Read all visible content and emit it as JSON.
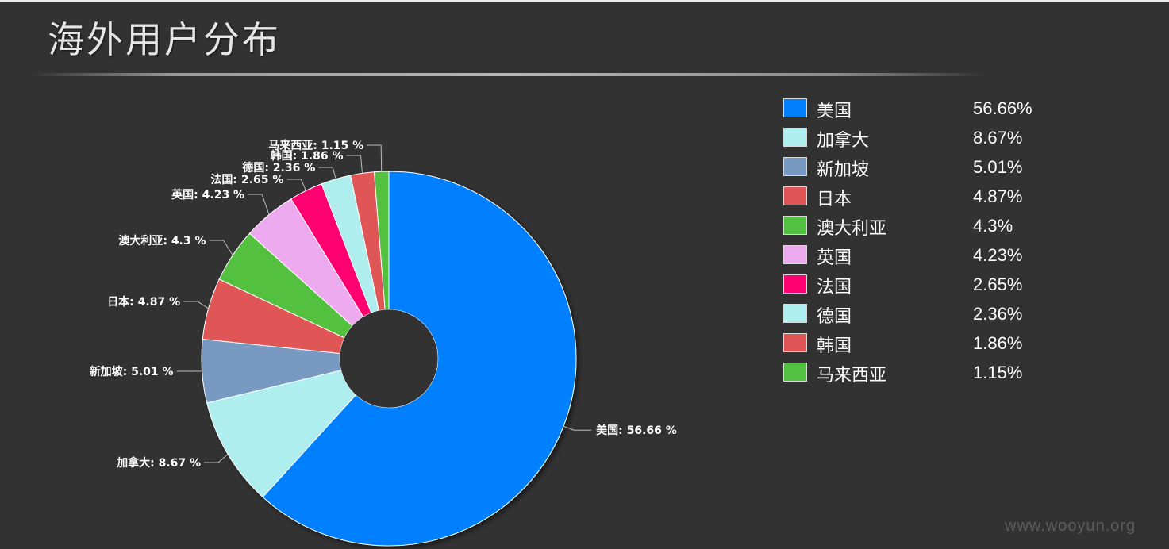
{
  "page": {
    "title": "海外用户分布"
  },
  "watermark": "www.wooyun.org",
  "chart_data": {
    "type": "pie",
    "donut": true,
    "title": "",
    "label_separator": ": ",
    "label_suffix": " %",
    "legend_position": "right",
    "slices": [
      {
        "name": "美国",
        "value": 56.66,
        "display": "56.66%",
        "color": "#0080ff"
      },
      {
        "name": "加拿大",
        "value": 8.67,
        "display": "8.67%",
        "color": "#aeeeee"
      },
      {
        "name": "新加坡",
        "value": 5.01,
        "display": "5.01%",
        "color": "#7899c2"
      },
      {
        "name": "日本",
        "value": 4.87,
        "display": "4.87%",
        "color": "#e05555"
      },
      {
        "name": "澳大利亚",
        "value": 4.3,
        "display": "4.3%",
        "color": "#52c040"
      },
      {
        "name": "英国",
        "value": 4.23,
        "display": "4.23%",
        "color": "#eeaaee"
      },
      {
        "name": "法国",
        "value": 2.65,
        "display": "2.65%",
        "color": "#ff0070"
      },
      {
        "name": "德国",
        "value": 2.36,
        "display": "2.36%",
        "color": "#aeeeee"
      },
      {
        "name": "韩国",
        "value": 1.86,
        "display": "1.86%",
        "color": "#e05555"
      },
      {
        "name": "马来西亚",
        "value": 1.15,
        "display": "1.15%",
        "color": "#52c040"
      }
    ]
  }
}
